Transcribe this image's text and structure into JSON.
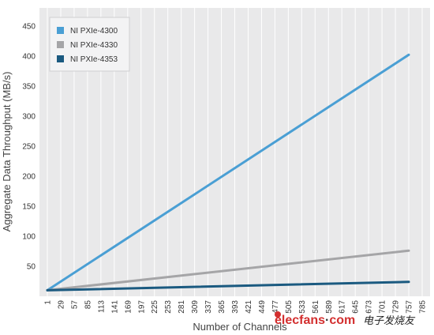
{
  "chart_data": {
    "type": "line",
    "xlabel": "Number of Channels",
    "ylabel": "Aggregate Data Throughput (MB/s)",
    "x_ticks": [
      1,
      29,
      57,
      85,
      113,
      141,
      169,
      197,
      225,
      253,
      281,
      309,
      337,
      365,
      393,
      421,
      449,
      477,
      505,
      533,
      561,
      589,
      617,
      645,
      673,
      701,
      729,
      757,
      785
    ],
    "xlim": [
      1,
      785
    ],
    "y_ticks": [
      50,
      100,
      150,
      200,
      250,
      300,
      350,
      400,
      450
    ],
    "ylim": [
      0,
      480
    ],
    "grid": true,
    "legend_position": "top-left",
    "series": [
      {
        "name": "NI PXIe-4300",
        "color": "#4a9fd4",
        "x": [
          1,
          757
        ],
        "y": [
          10,
          402
        ]
      },
      {
        "name": "NI PXIe-4330",
        "color": "#a5a5a7",
        "x": [
          1,
          757
        ],
        "y": [
          10,
          76
        ]
      },
      {
        "name": "NI PXIe-4353",
        "color": "#1b5a80",
        "x": [
          1,
          757
        ],
        "y": [
          10,
          24
        ]
      }
    ]
  },
  "watermark": {
    "brand": "elecfans",
    "dot": "·",
    "domain": "com",
    "chinese": "电子发烧友"
  }
}
